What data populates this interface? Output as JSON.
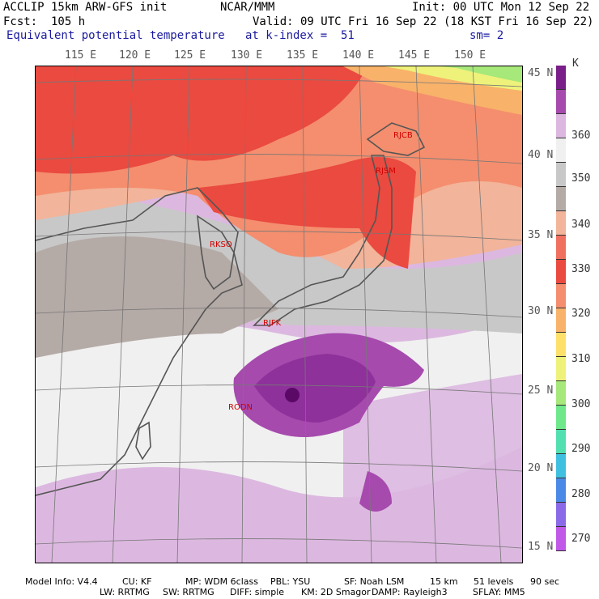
{
  "header": {
    "left1": "ACCLIP 15km ARW-GFS init",
    "center1": "NCAR/MMM",
    "right1": "Init: 00 UTC Mon 12 Sep 22",
    "left2": "Fcst:  105 h",
    "right2": "Valid: 09 UTC Fri 16 Sep 22 (18 KST Fri 16 Sep 22)",
    "field": "Equivalent potential temperature",
    "level": "at k-index =  51",
    "smooth": "sm= 2"
  },
  "lon_labels": [
    "115 E",
    "120 E",
    "125 E",
    "130 E",
    "135 E",
    "140 E",
    "145 E",
    "150 E"
  ],
  "lat_labels": [
    "45 N",
    "40 N",
    "35 N",
    "30 N",
    "25 N",
    "20 N",
    "15 N"
  ],
  "colorbar": {
    "unit": "K",
    "labels": [
      "360",
      "350",
      "340",
      "330",
      "320",
      "310",
      "300",
      "290",
      "280",
      "270"
    ],
    "colors": [
      "#7a1e8a",
      "#a64aae",
      "#dcb8e0",
      "#f0f0f0",
      "#c8c8c8",
      "#b4aaa6",
      "#f2b49a",
      "#f07060",
      "#ea4a40",
      "#f48e6e",
      "#f8b26a",
      "#fde06a",
      "#eef27a",
      "#a6e87a",
      "#6ee88a",
      "#52e0b0",
      "#40c0e0",
      "#4a8ae6",
      "#8a6ae6",
      "#c058e8"
    ]
  },
  "stations": [
    "RJCB",
    "RJSM",
    "RKSO",
    "RJFK",
    "RODN"
  ],
  "footer": {
    "line1": [
      "Model Info: V4.4",
      "CU: KF",
      "MP: WDM 6class",
      "PBL: YSU",
      "SF: Noah LSM",
      "15 km",
      "51 levels",
      "90 sec"
    ],
    "line2": [
      "LW: RRTMG",
      "SW: RRTMG",
      "DIFF: simple",
      "KM: 2D Smagor",
      "DAMP: Rayleigh3",
      "SFLAY: MM5"
    ]
  }
}
